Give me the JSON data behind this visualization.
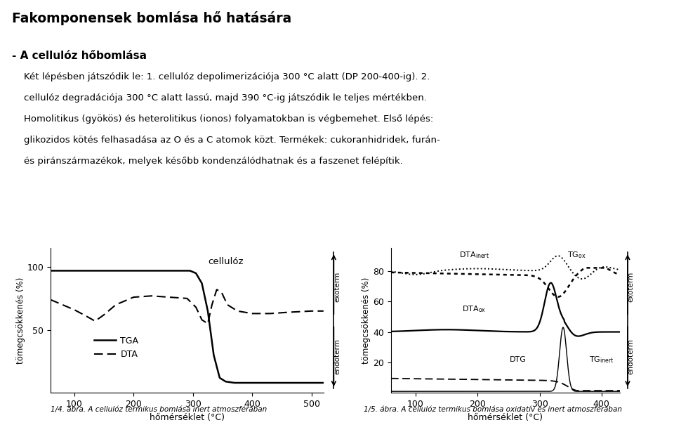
{
  "title": "Fakomponensek bomlása hő hatására",
  "subtitle": "- A cellulóz hőbomlása",
  "text_lines": [
    "Két lépésben játszódik le: 1. cellulóz depolimerizációja 300 °C alatt (DP 200-400-ig). 2. cellulóz degradációja 300 °C alatt lassú, majd 390 °C-ig játszódik le teljes mértékben.",
    "Homolitikus (gyökös) és heterolitikus (ionos) folyamatokban is végbemehet. Első lépés:",
    "glikozidos kötés felhasadása az O és a C atomok közt. Termékek: cukoranhidridek, furán-",
    "és piránszármazékok, melyek később kondenzálódhatnak és a faszenet felépítik."
  ],
  "fig1": {
    "xlabel": "hőmérséklet (°C)",
    "ylabel": "tömegcsökkenés (%)",
    "xlim": [
      60,
      520
    ],
    "xticks": [
      100,
      200,
      300,
      400,
      500
    ],
    "yticks": [
      50,
      100
    ],
    "caption": "1/4. ábra. A cellulóz termikus bomlása inert atmoszférában",
    "label_celluloz": "cellulóz",
    "legend_tga": "TGA",
    "legend_dta": "DTA",
    "exoterm_label": "exoterm",
    "endoterm_label": "endoterm"
  },
  "fig2": {
    "xlabel": "hőmérséklet (°C)",
    "ylabel": "tömegcsökkenés (%)",
    "xlim": [
      60,
      430
    ],
    "xticks": [
      100,
      200,
      300,
      400
    ],
    "yticks": [
      20,
      40,
      60,
      80
    ],
    "caption": "1/5. ábra. A cellulóz termikus bomlása oxidatív és inert atmoszférában",
    "label_dtainert": "DTA",
    "label_tgox": "TG",
    "label_dtaox": "DTA",
    "label_dtg": "DTG",
    "label_tginert": "TG",
    "exoterm_label": "exoterm",
    "endoterm_label": "endoterm"
  },
  "bg_color": "#ffffff",
  "text_color": "#000000"
}
